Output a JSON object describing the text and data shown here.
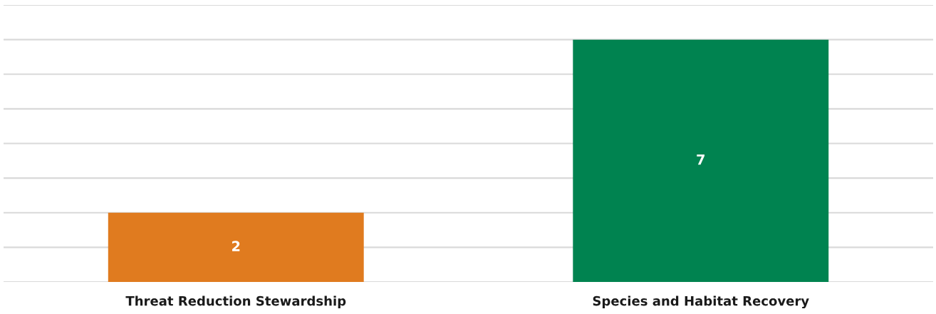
{
  "chart_data": {
    "type": "bar",
    "categories": [
      "Threat Reduction Stewardship",
      "Species and Habitat Recovery"
    ],
    "values": [
      2,
      7
    ],
    "colors": [
      "#e07b1f",
      "#008350"
    ],
    "ylim": [
      0,
      8
    ],
    "yticks": [
      {
        "value": 0,
        "label": null
      },
      {
        "value": 1,
        "label": null
      },
      {
        "value": 2,
        "label": null
      },
      {
        "value": 3,
        "label": null
      },
      {
        "value": 4,
        "label": null
      },
      {
        "value": 5,
        "label": null
      },
      {
        "value": 6,
        "label": null
      },
      {
        "value": 7,
        "label": null
      },
      {
        "value": 8,
        "label": null
      }
    ],
    "grid": "y",
    "tick_labels": "x",
    "data_labels": true
  }
}
